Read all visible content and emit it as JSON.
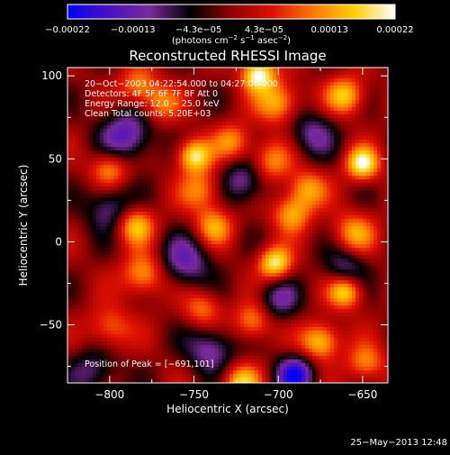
{
  "chart_data": {
    "type": "heatmap",
    "title": "Reconstructed RHESSI Image",
    "xlabel": "Heliocentric X (arcsec)",
    "ylabel": "Heliocentric Y (arcsec)",
    "xlim": [
      -825,
      -635
    ],
    "ylim": [
      -85,
      105
    ],
    "xticks": [
      -800,
      -750,
      -700,
      -650
    ],
    "yticks": [
      -50,
      0,
      50,
      100
    ],
    "xtick_labels": [
      "−800",
      "−750",
      "−700",
      "−650"
    ],
    "ytick_labels": [
      "−50",
      "0",
      "50",
      "100"
    ],
    "colorbar": {
      "min": -0.00022,
      "max": 0.00022,
      "tick_labels": [
        "−0.00022",
        "−0.00013",
        "−4.3e−05",
        "4.3e−05",
        "0.00013",
        "0.00022"
      ],
      "unit_main": "(photons cm",
      "unit_sup1": "−2",
      "unit_s": " s",
      "unit_sup2": "−1",
      "unit_end": " asec",
      "unit_sup3": "−2",
      "unit_close": ")",
      "colors": [
        "#0000ff",
        "#4a10c0",
        "#7a2a9a",
        "#000000",
        "#900000",
        "#e01000",
        "#ff7a00",
        "#ffd000",
        "#ffffff"
      ]
    },
    "annotations": [
      "20−Oct−2003 04:22:54.000 to 04:27:06.000",
      "Detectors: 4F 5F 6F 7F 8F  Att 0",
      "Energy Range: 12.0 − 25.0 keV",
      "Clean     Total counts: 5.20E+03"
    ],
    "peak_label": "Position of Peak = [−691,101]",
    "peak": [
      -691,
      101
    ],
    "sources": [
      {
        "x": -712,
        "y": 101,
        "amp": 1.0,
        "w": 7
      },
      {
        "x": -700,
        "y": 84,
        "amp": 0.7,
        "w": 9
      },
      {
        "x": -660,
        "y": 88,
        "amp": 0.75,
        "w": 8
      },
      {
        "x": -783,
        "y": 94,
        "amp": 0.55,
        "w": 8
      },
      {
        "x": -770,
        "y": 83,
        "amp": 0.5,
        "w": 8
      },
      {
        "x": -750,
        "y": 52,
        "amp": 0.9,
        "w": 7
      },
      {
        "x": -727,
        "y": 60,
        "amp": 0.55,
        "w": 8
      },
      {
        "x": -705,
        "y": 48,
        "amp": 0.6,
        "w": 9
      },
      {
        "x": -650,
        "y": 47,
        "amp": 0.95,
        "w": 7
      },
      {
        "x": -800,
        "y": 44,
        "amp": 0.6,
        "w": 8
      },
      {
        "x": -745,
        "y": 31,
        "amp": 0.55,
        "w": 9
      },
      {
        "x": -683,
        "y": 32,
        "amp": 0.6,
        "w": 8
      },
      {
        "x": -692,
        "y": 17,
        "amp": 0.65,
        "w": 8
      },
      {
        "x": -785,
        "y": 10,
        "amp": 0.75,
        "w": 8
      },
      {
        "x": -738,
        "y": 9,
        "amp": 0.6,
        "w": 8
      },
      {
        "x": -655,
        "y": 5,
        "amp": 0.6,
        "w": 9
      },
      {
        "x": -780,
        "y": -20,
        "amp": 0.65,
        "w": 9
      },
      {
        "x": -702,
        "y": -13,
        "amp": 0.9,
        "w": 7
      },
      {
        "x": -745,
        "y": -40,
        "amp": 0.5,
        "w": 8
      },
      {
        "x": -660,
        "y": -30,
        "amp": 0.85,
        "w": 7
      },
      {
        "x": -715,
        "y": -48,
        "amp": 0.6,
        "w": 8
      },
      {
        "x": -675,
        "y": -60,
        "amp": 0.8,
        "w": 8
      },
      {
        "x": -800,
        "y": -52,
        "amp": 0.5,
        "w": 9
      },
      {
        "x": -722,
        "y": -85,
        "amp": 0.75,
        "w": 8
      },
      {
        "x": -648,
        "y": -73,
        "amp": 0.55,
        "w": 8
      },
      {
        "x": -790,
        "y": 64,
        "amp": -0.7,
        "w": 11
      },
      {
        "x": -720,
        "y": 37,
        "amp": -0.6,
        "w": 10
      },
      {
        "x": -800,
        "y": 20,
        "amp": -0.55,
        "w": 10
      },
      {
        "x": -755,
        "y": -12,
        "amp": -0.6,
        "w": 11
      },
      {
        "x": -680,
        "y": 65,
        "amp": -0.5,
        "w": 10
      },
      {
        "x": -740,
        "y": -65,
        "amp": -0.6,
        "w": 10
      },
      {
        "x": -690,
        "y": -80,
        "amp": -0.9,
        "w": 8
      },
      {
        "x": -700,
        "y": -35,
        "amp": -0.5,
        "w": 9
      },
      {
        "x": -660,
        "y": -15,
        "amp": -0.5,
        "w": 9
      },
      {
        "x": -810,
        "y": -78,
        "amp": -0.45,
        "w": 10
      }
    ]
  },
  "footer_timestamp": "25−May−2013 12:48"
}
